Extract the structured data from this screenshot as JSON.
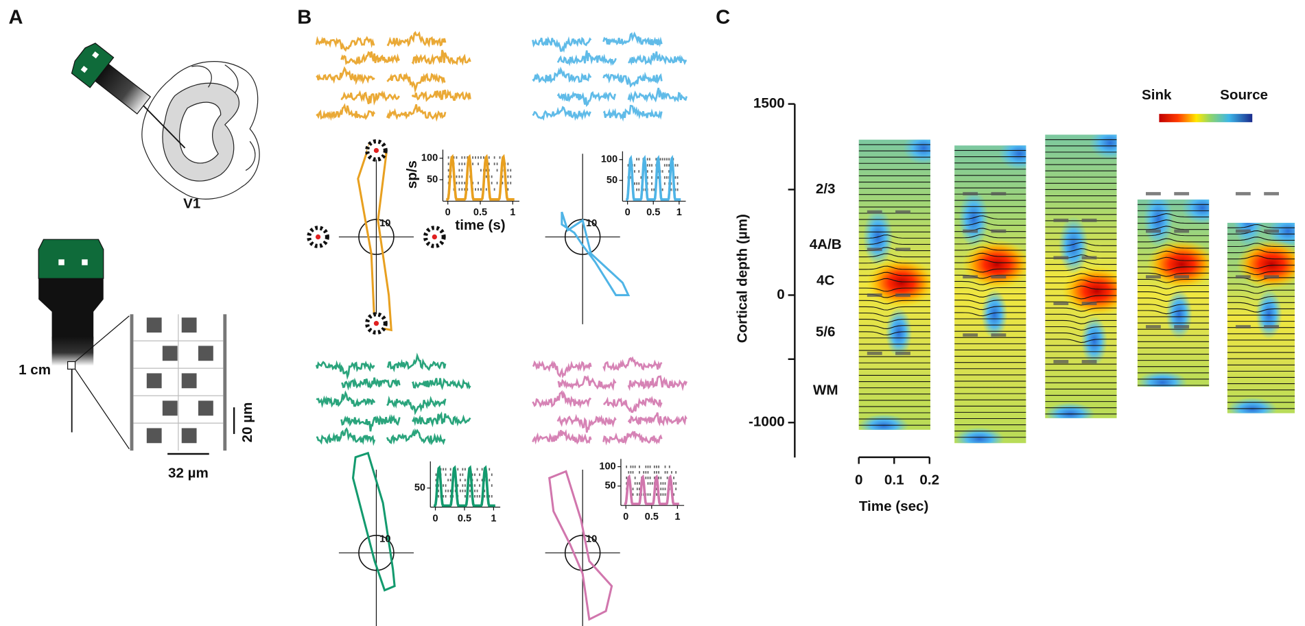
{
  "panel_a": {
    "label": "A",
    "region": "V1",
    "probe_length": "1 cm",
    "scale_vertical": "20 µm",
    "scale_horizontal": "32 µm"
  },
  "panel_b": {
    "label": "B",
    "psth_y_label": "sp/s",
    "psth_x_label": "time (s)",
    "units": [
      {
        "color": "#e8a020",
        "psth_y_ticks": [
          100,
          50
        ],
        "psth_x_ticks": [
          0,
          0.5,
          1
        ],
        "polar_scale": 10
      },
      {
        "color": "#4fb4e6",
        "psth_y_ticks": [
          100,
          50
        ],
        "psth_x_ticks": [
          0,
          0.5,
          1
        ],
        "polar_scale": 10
      },
      {
        "color": "#139a6e",
        "psth_y_ticks": [
          50
        ],
        "psth_x_ticks": [
          0,
          0.5,
          1
        ],
        "polar_scale": 10
      },
      {
        "color": "#d176ad",
        "psth_y_ticks": [
          100,
          50
        ],
        "psth_x_ticks": [
          0,
          0.5,
          1
        ],
        "polar_scale": 10
      }
    ]
  },
  "panel_c": {
    "label": "C",
    "y_axis_label": "Cortical depth (µm)",
    "y_ticks": [
      1500,
      0,
      -1000
    ],
    "layers": [
      "2/3",
      "4A/B",
      "4C",
      "5/6",
      "WM"
    ],
    "colorbar_low": "Sink",
    "colorbar_high": "Source",
    "x_ticks": [
      0,
      0.1,
      0.2
    ],
    "x_axis_label": "Time (sec)"
  }
}
